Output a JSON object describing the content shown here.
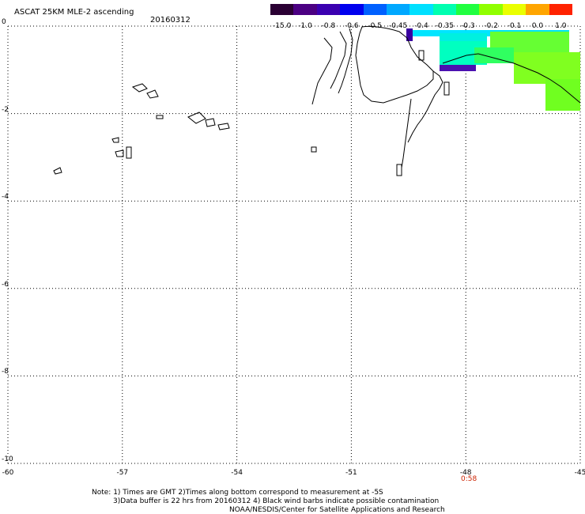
{
  "header": {
    "title": "ASCAT 25KM MLE-2 ascending",
    "date": "20160312"
  },
  "colorbar": {
    "labels": [
      "-15.0",
      "-1.0",
      "-0.8",
      "-0.6",
      "-0.5",
      "-0.45",
      "-0.4",
      "-0.35",
      "-0.3",
      "-0.2",
      "-0.1",
      "0.0",
      "1.0"
    ],
    "colors": [
      "#2a0033",
      "#4b0082",
      "#3a00b0",
      "#0000ee",
      "#0060ff",
      "#00a8ff",
      "#00e0ff",
      "#00ffb0",
      "#20ff40",
      "#90ff00",
      "#eaff00",
      "#ffa500",
      "#ff2200"
    ]
  },
  "map": {
    "lon_range": [
      -60,
      -45
    ],
    "lat_range": [
      -10,
      0
    ],
    "x_ticks": [
      "-60",
      "-57",
      "-54",
      "-51",
      "-48",
      "-45"
    ],
    "y_ticks": [
      "0",
      "-2",
      "-4",
      "-6",
      "-8",
      "-10"
    ],
    "time_label": "0:58"
  },
  "footer": {
    "note1": "Note: 1) Times are GMT 2)Times along bottom correspond to measurement at -5S",
    "note2": "3)Data buffer is 22 hrs from 20160312 4) Black wind barbs indicate possible contamination",
    "note3": "NOAA/NESDIS/Center for Satellite Applications and Research"
  }
}
